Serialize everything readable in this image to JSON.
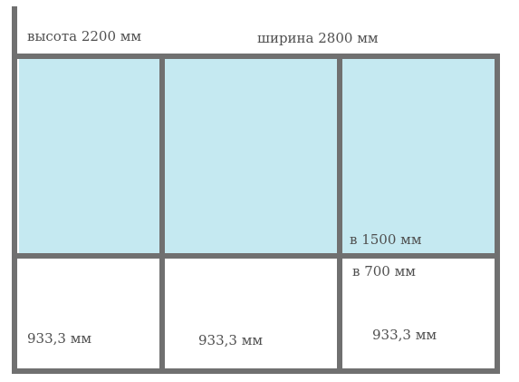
{
  "height_label": "высота 2200 мм",
  "width_label": "ширина 2800 мм",
  "top_height_label": "в 1500 мм",
  "bottom_height_label": "в 700 мм",
  "column_widths": [
    "933,3 мм",
    "933,3 мм",
    "933,3 мм"
  ],
  "colors": {
    "frame": "#707070",
    "glass": "#c5e9f1",
    "text": "#4f4f4f"
  }
}
